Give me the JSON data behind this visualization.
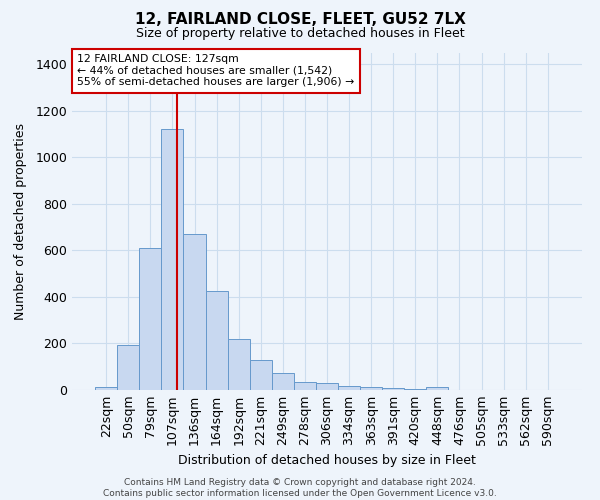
{
  "title": "12, FAIRLAND CLOSE, FLEET, GU52 7LX",
  "subtitle": "Size of property relative to detached houses in Fleet",
  "xlabel": "Distribution of detached houses by size in Fleet",
  "ylabel": "Number of detached properties",
  "footnote1": "Contains HM Land Registry data © Crown copyright and database right 2024.",
  "footnote2": "Contains public sector information licensed under the Open Government Licence v3.0.",
  "categories": [
    "22sqm",
    "50sqm",
    "79sqm",
    "107sqm",
    "136sqm",
    "164sqm",
    "192sqm",
    "221sqm",
    "249sqm",
    "278sqm",
    "306sqm",
    "334sqm",
    "363sqm",
    "391sqm",
    "420sqm",
    "448sqm",
    "476sqm",
    "505sqm",
    "533sqm",
    "562sqm",
    "590sqm"
  ],
  "values": [
    15,
    195,
    610,
    1120,
    670,
    425,
    220,
    130,
    75,
    33,
    32,
    18,
    12,
    8,
    5,
    12,
    0,
    0,
    0,
    0,
    0
  ],
  "bar_color": "#c8d8f0",
  "bar_edge_color": "#6699cc",
  "grid_color": "#ccddee",
  "bg_color": "#eef4fb",
  "property_line_color": "#cc0000",
  "annotation_text": "12 FAIRLAND CLOSE: 127sqm\n← 44% of detached houses are smaller (1,542)\n55% of semi-detached houses are larger (1,906) →",
  "annotation_box_color": "#ffffff",
  "annotation_box_edge": "#cc0000",
  "ylim": [
    0,
    1450
  ],
  "yticks": [
    0,
    200,
    400,
    600,
    800,
    1000,
    1200,
    1400
  ]
}
